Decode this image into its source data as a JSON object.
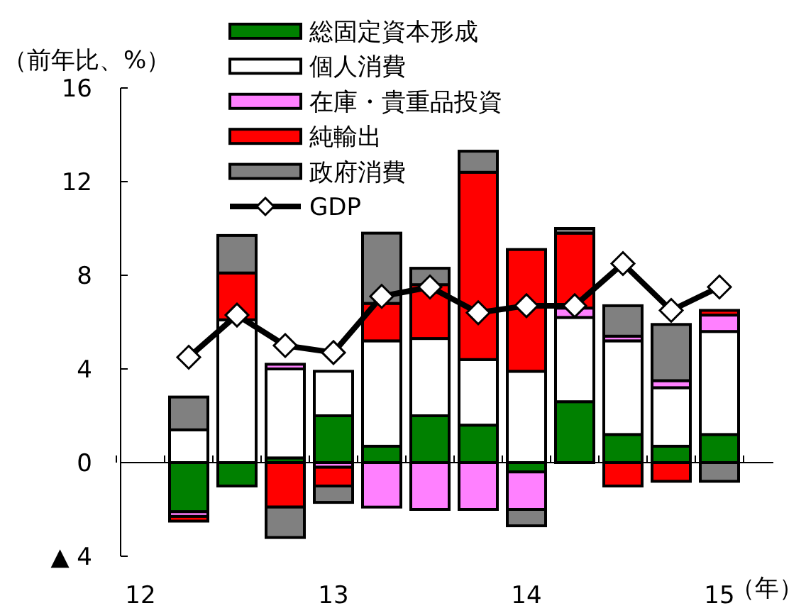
{
  "chart_data": {
    "type": "bar",
    "stacked": true,
    "ylabel": "（前年比、%）",
    "xlabel": "（年）",
    "categories": [
      "12",
      null,
      null,
      null,
      "13",
      null,
      null,
      null,
      "14",
      null,
      null,
      null,
      "15"
    ],
    "series": [
      {
        "name": "総固定資本形成",
        "color": "#008000",
        "values": [
          null,
          -2.1,
          -1.0,
          0.2,
          2.0,
          0.7,
          2.0,
          1.6,
          -0.4,
          2.6,
          1.2,
          0.7,
          1.2
        ]
      },
      {
        "name": "個人消費",
        "color": "#ffffff",
        "values": [
          null,
          1.4,
          6.1,
          3.8,
          1.9,
          4.5,
          3.3,
          2.8,
          3.9,
          3.6,
          4.0,
          2.5,
          4.4
        ]
      },
      {
        "name": "在庫・貴重品投資",
        "color": "#ff80ff",
        "values": [
          null,
          -0.2,
          0,
          0.2,
          -0.2,
          -1.9,
          -2.0,
          -2.0,
          -1.6,
          0.4,
          0.2,
          0.3,
          0.7
        ]
      },
      {
        "name": "純輸出",
        "color": "#ff0000",
        "values": [
          null,
          -0.2,
          2.0,
          -1.9,
          -0.8,
          1.6,
          2.3,
          8.0,
          5.2,
          3.2,
          -1.0,
          -0.8,
          0.2
        ]
      },
      {
        "name": "政府消費",
        "color": "#808080",
        "values": [
          null,
          1.4,
          1.6,
          -1.3,
          -0.7,
          3.0,
          0.7,
          0.9,
          -0.7,
          0.2,
          1.3,
          2.4,
          -0.8
        ]
      },
      {
        "name": "GDP",
        "type": "line",
        "color": "#000000",
        "marker": "diamond",
        "values": [
          null,
          4.5,
          6.3,
          5.0,
          4.7,
          7.1,
          7.5,
          6.4,
          6.7,
          6.7,
          8.5,
          6.5,
          7.5
        ]
      }
    ],
    "ylim": [
      -4,
      16
    ],
    "yticks": [
      {
        "value": -4,
        "label": "▲ 4"
      },
      0,
      4,
      8,
      12,
      16
    ],
    "legend": "top"
  }
}
